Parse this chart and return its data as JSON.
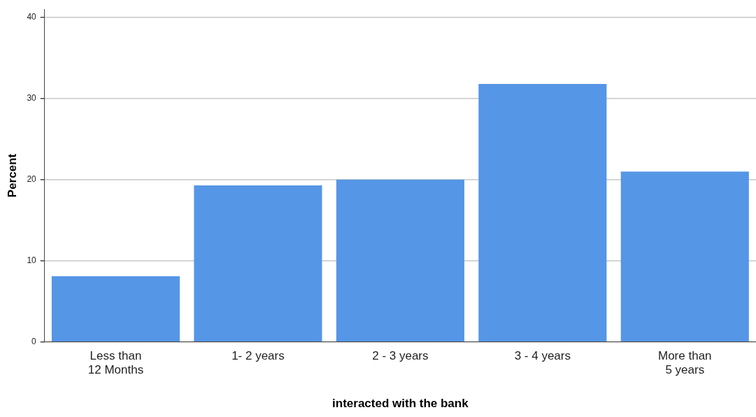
{
  "chart_data": {
    "type": "bar",
    "xlabel": "interacted with the bank",
    "ylabel": "Percent",
    "categories": [
      "Less than 12 Months",
      "1- 2 years",
      "2 - 3 years",
      "3 - 4 years",
      "More than 5 years"
    ],
    "values": [
      8.1,
      19.3,
      20.0,
      31.8,
      21.0
    ],
    "color": "#5596e6",
    "ylim": [
      0,
      41
    ],
    "yticks": [
      0,
      10,
      20,
      30,
      40
    ],
    "grid": "y",
    "legend": false
  }
}
